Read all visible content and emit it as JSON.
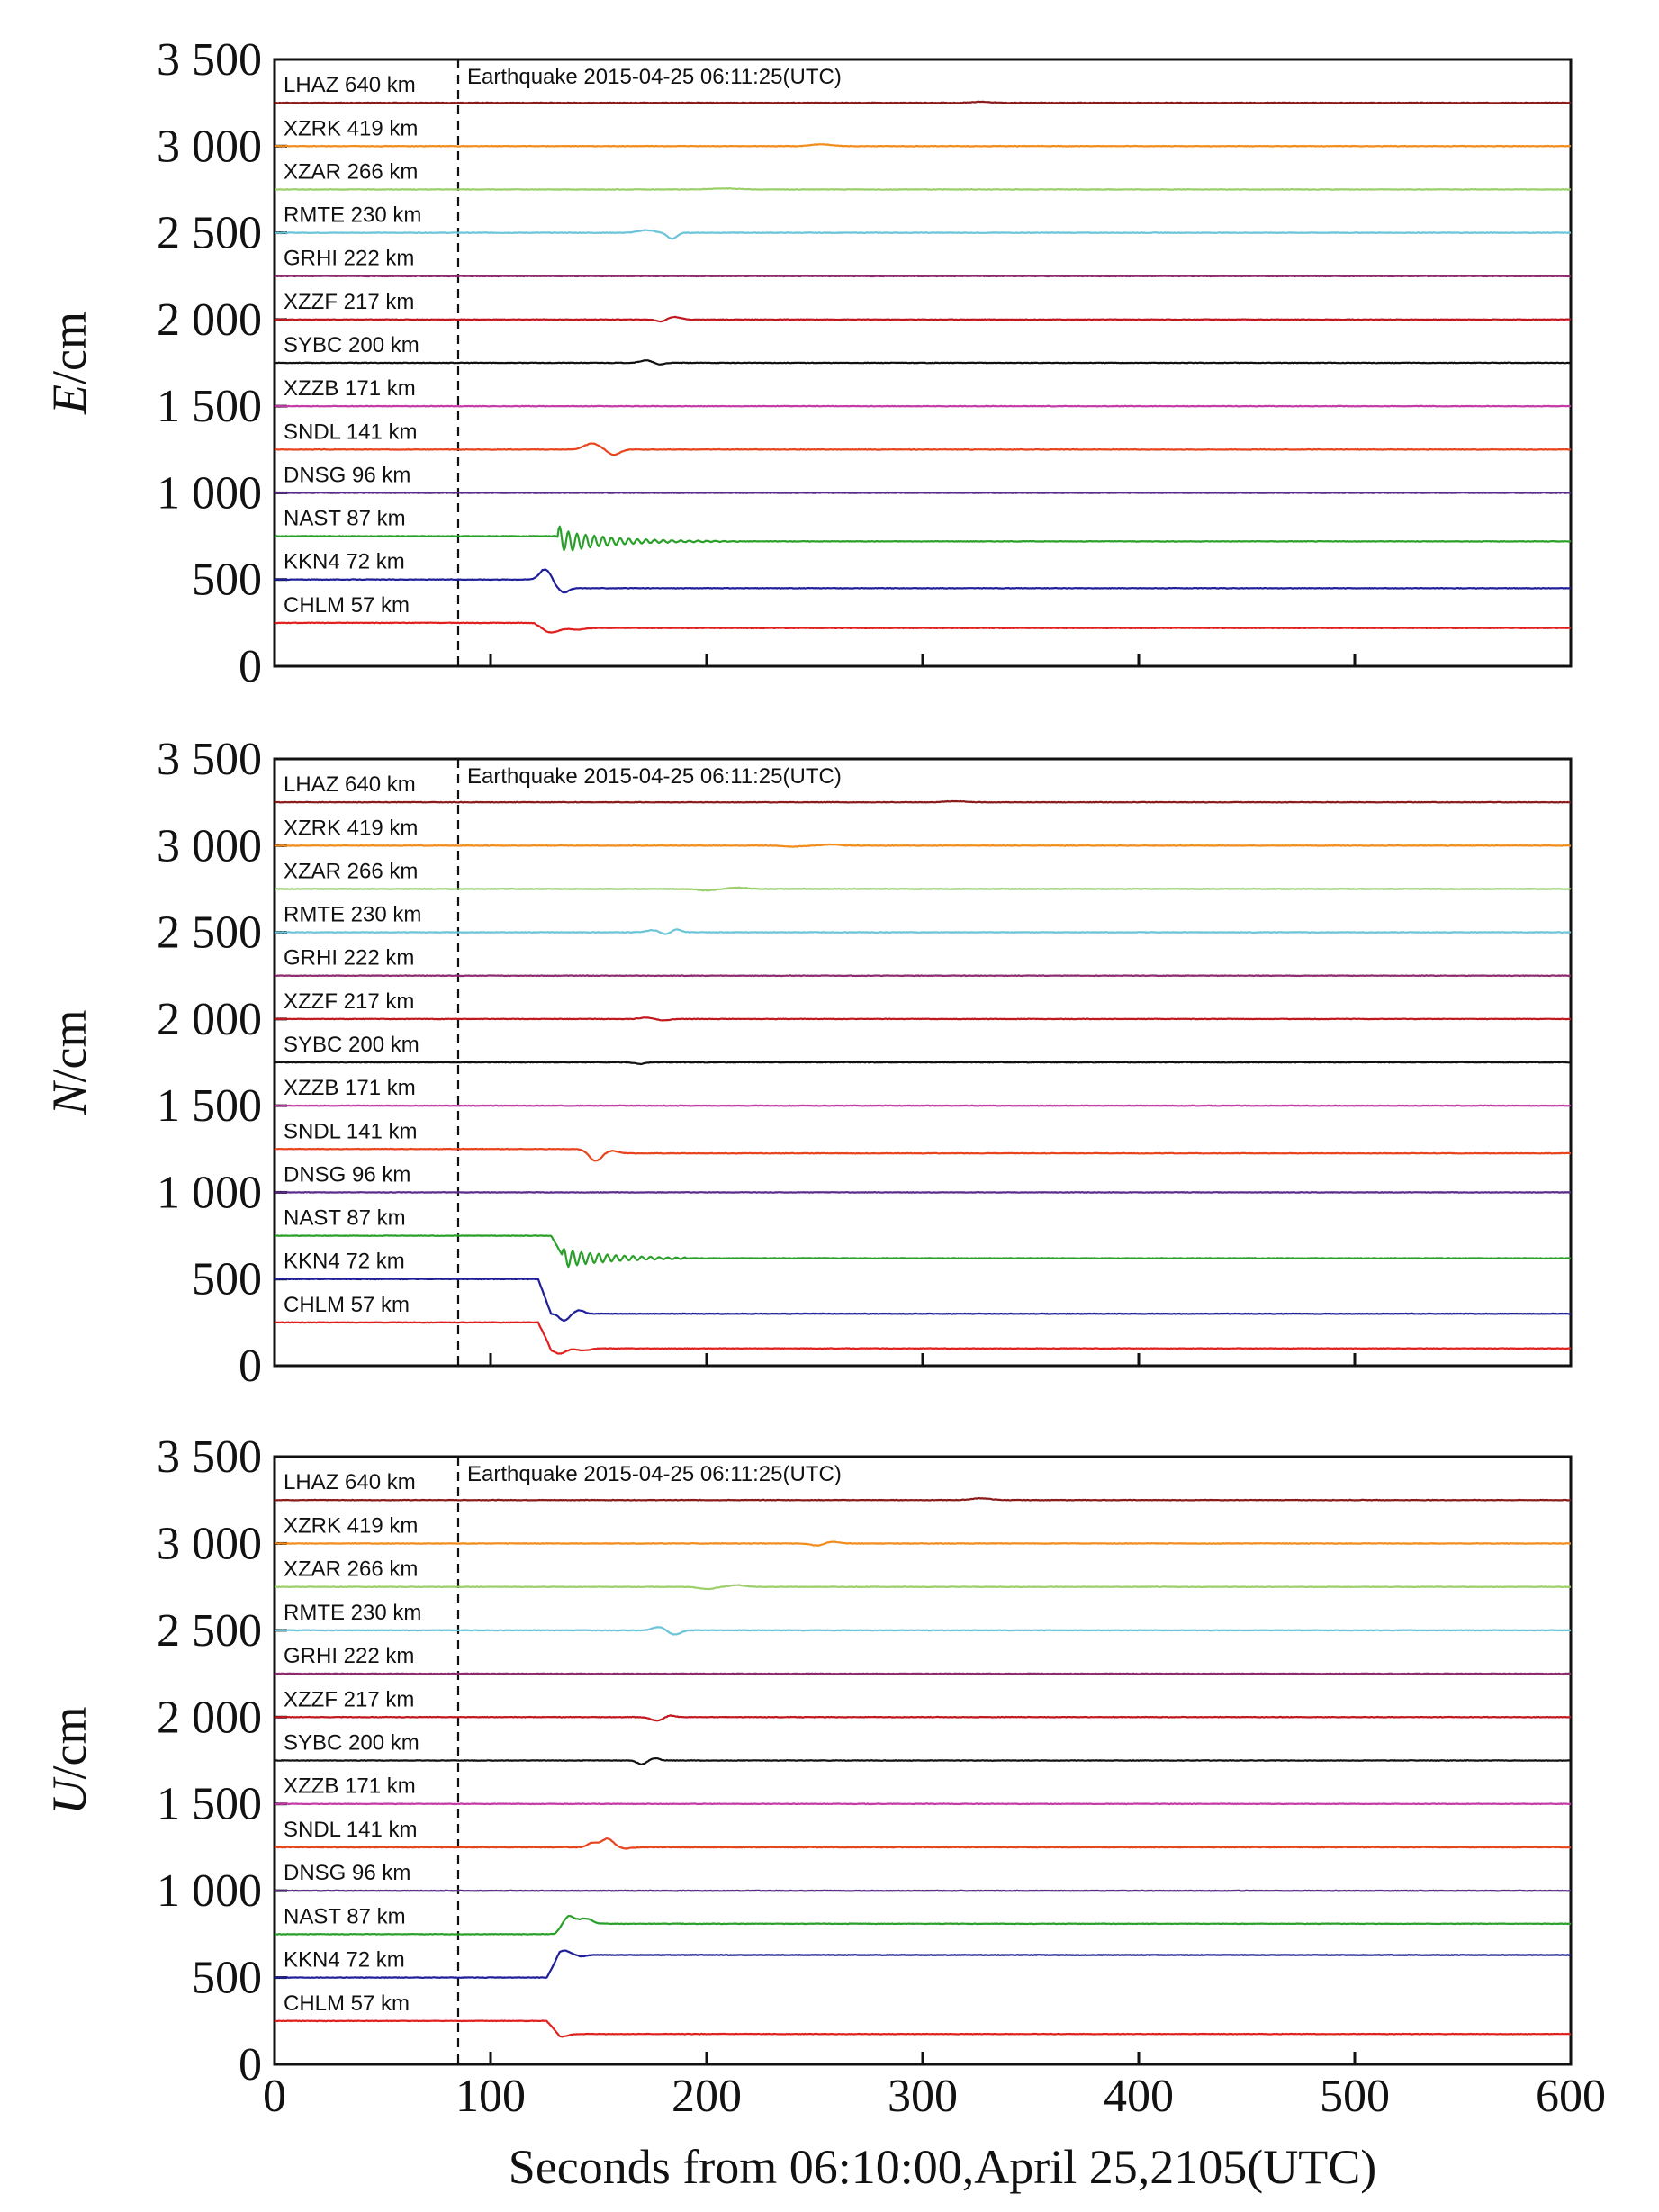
{
  "chart_data": {
    "type": "line",
    "x_start": 0,
    "xlim": [
      0,
      600
    ],
    "x_ticks": [
      0,
      100,
      200,
      300,
      400,
      500,
      600
    ],
    "x_tick_labels": [
      "0",
      "100",
      "200",
      "300",
      "400",
      "500",
      "600"
    ],
    "xlabel": "Seconds from 06:10:00,April 25,2105(UTC)",
    "event_time": 85,
    "event_label": "Earthquake 2015-04-25 06:11:25(UTC)",
    "ylim": [
      0,
      3500
    ],
    "y_ticks": [
      0,
      500,
      1000,
      1500,
      2000,
      2500,
      3000,
      3500
    ],
    "y_tick_labels": [
      "0",
      "500",
      "1 000",
      "1 500",
      "2 000",
      "2 500",
      "3 000",
      "3 500"
    ],
    "stations": [
      {
        "name": "LHAZ",
        "distance": "640 km",
        "label": "LHAZ  640 km",
        "color": "#8b1a1a"
      },
      {
        "name": "XZRK",
        "distance": "419 km",
        "label": "XZRK  419 km",
        "color": "#f28c1c"
      },
      {
        "name": "XZAR",
        "distance": "266 km",
        "label": "XZAR  266 km",
        "color": "#9ccf6a"
      },
      {
        "name": "RMTE",
        "distance": "230 km",
        "label": "RMTE 230 km",
        "color": "#6cc4d8"
      },
      {
        "name": "GRHI",
        "distance": "222 km",
        "label": "GRHI  222 km",
        "color": "#8e2a6e"
      },
      {
        "name": "XZZF",
        "distance": "217 km",
        "label": "XZZF  217 km",
        "color": "#c0181e"
      },
      {
        "name": "SYBC",
        "distance": "200 km",
        "label": "SYBC 200 km",
        "color": "#111111"
      },
      {
        "name": "XZZB",
        "distance": "171 km",
        "label": "XZZB  171 km",
        "color": "#c43aa6"
      },
      {
        "name": "SNDL",
        "distance": "141 km",
        "label": "SNDL  141 km",
        "color": "#e8451e"
      },
      {
        "name": "DNSG",
        "distance": "96 km",
        "label": "DNSG   96 km",
        "color": "#5a2c8a"
      },
      {
        "name": "NAST",
        "distance": "87 km",
        "label": "NAST    87 km",
        "color": "#2aa02a"
      },
      {
        "name": "KKN4",
        "distance": "72 km",
        "label": "KKN4    72 km",
        "color": "#1f1f9a"
      },
      {
        "name": "CHLM",
        "distance": "57 km",
        "label": "CHLM   57 km",
        "color": "#e0201e"
      }
    ],
    "panels": [
      {
        "component": "E",
        "ylabel_italic": "E",
        "ylabel_unit": "/cm",
        "series": [
          {
            "station": "LHAZ",
            "baseline": 3250,
            "final": 3250,
            "events": [
              {
                "t": 327,
                "amp": 6,
                "w": 6
              }
            ]
          },
          {
            "station": "XZRK",
            "baseline": 3000,
            "final": 3000,
            "events": [
              {
                "t": 253,
                "amp": 10,
                "w": 6
              }
            ]
          },
          {
            "station": "XZAR",
            "baseline": 2750,
            "final": 2750,
            "events": [
              {
                "t": 208,
                "amp": 6,
                "w": 8
              }
            ]
          },
          {
            "station": "RMTE",
            "baseline": 2500,
            "final": 2500,
            "events": [
              {
                "t": 172,
                "amp": 15,
                "w": 5
              },
              {
                "t": 184,
                "amp": -35,
                "w": 3
              }
            ]
          },
          {
            "station": "GRHI",
            "baseline": 2250,
            "final": 2250,
            "events": []
          },
          {
            "station": "XZZF",
            "baseline": 2000,
            "final": 2000,
            "events": [
              {
                "t": 179,
                "amp": -12,
                "w": 3
              },
              {
                "t": 185,
                "amp": 15,
                "w": 4
              }
            ]
          },
          {
            "station": "SYBC",
            "baseline": 1750,
            "final": 1750,
            "events": [
              {
                "t": 172,
                "amp": 14,
                "w": 4
              },
              {
                "t": 178,
                "amp": -10,
                "w": 3
              }
            ]
          },
          {
            "station": "XZZB",
            "baseline": 1500,
            "final": 1500,
            "events": []
          },
          {
            "station": "SNDL",
            "baseline": 1250,
            "final": 1250,
            "events": [
              {
                "t": 147,
                "amp": 35,
                "w": 5
              },
              {
                "t": 157,
                "amp": -30,
                "w": 4
              }
            ]
          },
          {
            "station": "DNSG",
            "baseline": 1000,
            "final": 1000,
            "events": []
          },
          {
            "station": "NAST",
            "baseline": 750,
            "final": 720,
            "onset": 130,
            "osc": {
              "start": 131,
              "end": 215,
              "amp": 70,
              "period": 4,
              "decay": 22
            }
          },
          {
            "station": "KKN4",
            "baseline": 500,
            "final": 450,
            "onset": 124,
            "events": [
              {
                "t": 126,
                "amp": 70,
                "w": 4
              },
              {
                "t": 134,
                "amp": -25,
                "w": 3
              }
            ]
          },
          {
            "station": "CHLM",
            "baseline": 250,
            "final": 220,
            "onset": 120,
            "events": [
              {
                "t": 128,
                "amp": -25,
                "w": 5
              },
              {
                "t": 140,
                "amp": -10,
                "w": 4
              }
            ]
          }
        ]
      },
      {
        "component": "N",
        "ylabel_italic": "N",
        "ylabel_unit": "/cm",
        "series": [
          {
            "station": "LHAZ",
            "baseline": 3250,
            "final": 3250,
            "events": [
              {
                "t": 315,
                "amp": 6,
                "w": 6
              }
            ]
          },
          {
            "station": "XZRK",
            "baseline": 3000,
            "final": 3000,
            "events": [
              {
                "t": 240,
                "amp": -6,
                "w": 6
              },
              {
                "t": 258,
                "amp": 6,
                "w": 5
              }
            ]
          },
          {
            "station": "XZAR",
            "baseline": 2750,
            "final": 2750,
            "events": [
              {
                "t": 200,
                "amp": -8,
                "w": 6
              },
              {
                "t": 214,
                "amp": 8,
                "w": 6
              }
            ]
          },
          {
            "station": "RMTE",
            "baseline": 2500,
            "final": 2500,
            "events": [
              {
                "t": 175,
                "amp": 12,
                "w": 4
              },
              {
                "t": 181,
                "amp": -12,
                "w": 3
              },
              {
                "t": 186,
                "amp": 16,
                "w": 3
              }
            ]
          },
          {
            "station": "GRHI",
            "baseline": 2250,
            "final": 2250,
            "events": []
          },
          {
            "station": "XZZF",
            "baseline": 2000,
            "final": 2000,
            "events": [
              {
                "t": 172,
                "amp": 8,
                "w": 4
              },
              {
                "t": 180,
                "amp": -8,
                "w": 4
              }
            ]
          },
          {
            "station": "SYBC",
            "baseline": 1750,
            "final": 1750,
            "events": [
              {
                "t": 169,
                "amp": -10,
                "w": 3
              }
            ]
          },
          {
            "station": "XZZB",
            "baseline": 1500,
            "final": 1500,
            "events": []
          },
          {
            "station": "SNDL",
            "baseline": 1250,
            "final": 1225,
            "onset": 145,
            "events": [
              {
                "t": 148,
                "amp": -55,
                "w": 4
              },
              {
                "t": 156,
                "amp": 15,
                "w": 4
              }
            ]
          },
          {
            "station": "DNSG",
            "baseline": 1000,
            "final": 1000,
            "events": []
          },
          {
            "station": "NAST",
            "baseline": 750,
            "final": 620,
            "onset": 128,
            "osc": {
              "start": 133,
              "end": 190,
              "amp": 55,
              "period": 4,
              "decay": 22
            }
          },
          {
            "station": "KKN4",
            "baseline": 500,
            "final": 300,
            "onset": 122,
            "events": [
              {
                "t": 134,
                "amp": -40,
                "w": 3
              },
              {
                "t": 141,
                "amp": 20,
                "w": 3
              }
            ]
          },
          {
            "station": "CHLM",
            "baseline": 250,
            "final": 100,
            "onset": 122,
            "events": [
              {
                "t": 132,
                "amp": -30,
                "w": 4
              },
              {
                "t": 143,
                "amp": -12,
                "w": 4
              }
            ]
          }
        ]
      },
      {
        "component": "U",
        "ylabel_italic": "U",
        "ylabel_unit": "/cm",
        "series": [
          {
            "station": "LHAZ",
            "baseline": 3250,
            "final": 3250,
            "events": [
              {
                "t": 327,
                "amp": 10,
                "w": 6
              }
            ]
          },
          {
            "station": "XZRK",
            "baseline": 3000,
            "final": 3000,
            "events": [
              {
                "t": 251,
                "amp": -12,
                "w": 4
              },
              {
                "t": 258,
                "amp": 10,
                "w": 4
              }
            ]
          },
          {
            "station": "XZAR",
            "baseline": 2750,
            "final": 2750,
            "events": [
              {
                "t": 200,
                "amp": -12,
                "w": 5
              },
              {
                "t": 214,
                "amp": 10,
                "w": 5
              }
            ]
          },
          {
            "station": "RMTE",
            "baseline": 2500,
            "final": 2500,
            "events": [
              {
                "t": 178,
                "amp": 20,
                "w": 4
              },
              {
                "t": 185,
                "amp": -25,
                "w": 4
              }
            ]
          },
          {
            "station": "GRHI",
            "baseline": 2250,
            "final": 2250,
            "events": []
          },
          {
            "station": "XZZF",
            "baseline": 2000,
            "final": 2000,
            "events": [
              {
                "t": 177,
                "amp": -20,
                "w": 4
              },
              {
                "t": 183,
                "amp": 10,
                "w": 3
              }
            ]
          },
          {
            "station": "SYBC",
            "baseline": 1750,
            "final": 1750,
            "events": [
              {
                "t": 170,
                "amp": -22,
                "w": 3
              },
              {
                "t": 176,
                "amp": 14,
                "w": 3
              }
            ]
          },
          {
            "station": "XZZB",
            "baseline": 1500,
            "final": 1500,
            "events": []
          },
          {
            "station": "SNDL",
            "baseline": 1250,
            "final": 1250,
            "events": [
              {
                "t": 147,
                "amp": 25,
                "w": 3
              },
              {
                "t": 154,
                "amp": 50,
                "w": 4
              },
              {
                "t": 162,
                "amp": -8,
                "w": 4
              }
            ]
          },
          {
            "station": "DNSG",
            "baseline": 1000,
            "final": 1000,
            "events": []
          },
          {
            "station": "NAST",
            "baseline": 750,
            "final": 810,
            "onset": 130,
            "events": [
              {
                "t": 136,
                "amp": 45,
                "w": 4
              },
              {
                "t": 144,
                "amp": 30,
                "w": 4
              }
            ]
          },
          {
            "station": "KKN4",
            "baseline": 500,
            "final": 630,
            "onset": 126,
            "events": [
              {
                "t": 134,
                "amp": 25,
                "w": 4
              },
              {
                "t": 142,
                "amp": -8,
                "w": 3
              }
            ]
          },
          {
            "station": "CHLM",
            "baseline": 250,
            "final": 175,
            "onset": 126,
            "events": [
              {
                "t": 133,
                "amp": -15,
                "w": 4
              }
            ]
          }
        ]
      }
    ]
  }
}
